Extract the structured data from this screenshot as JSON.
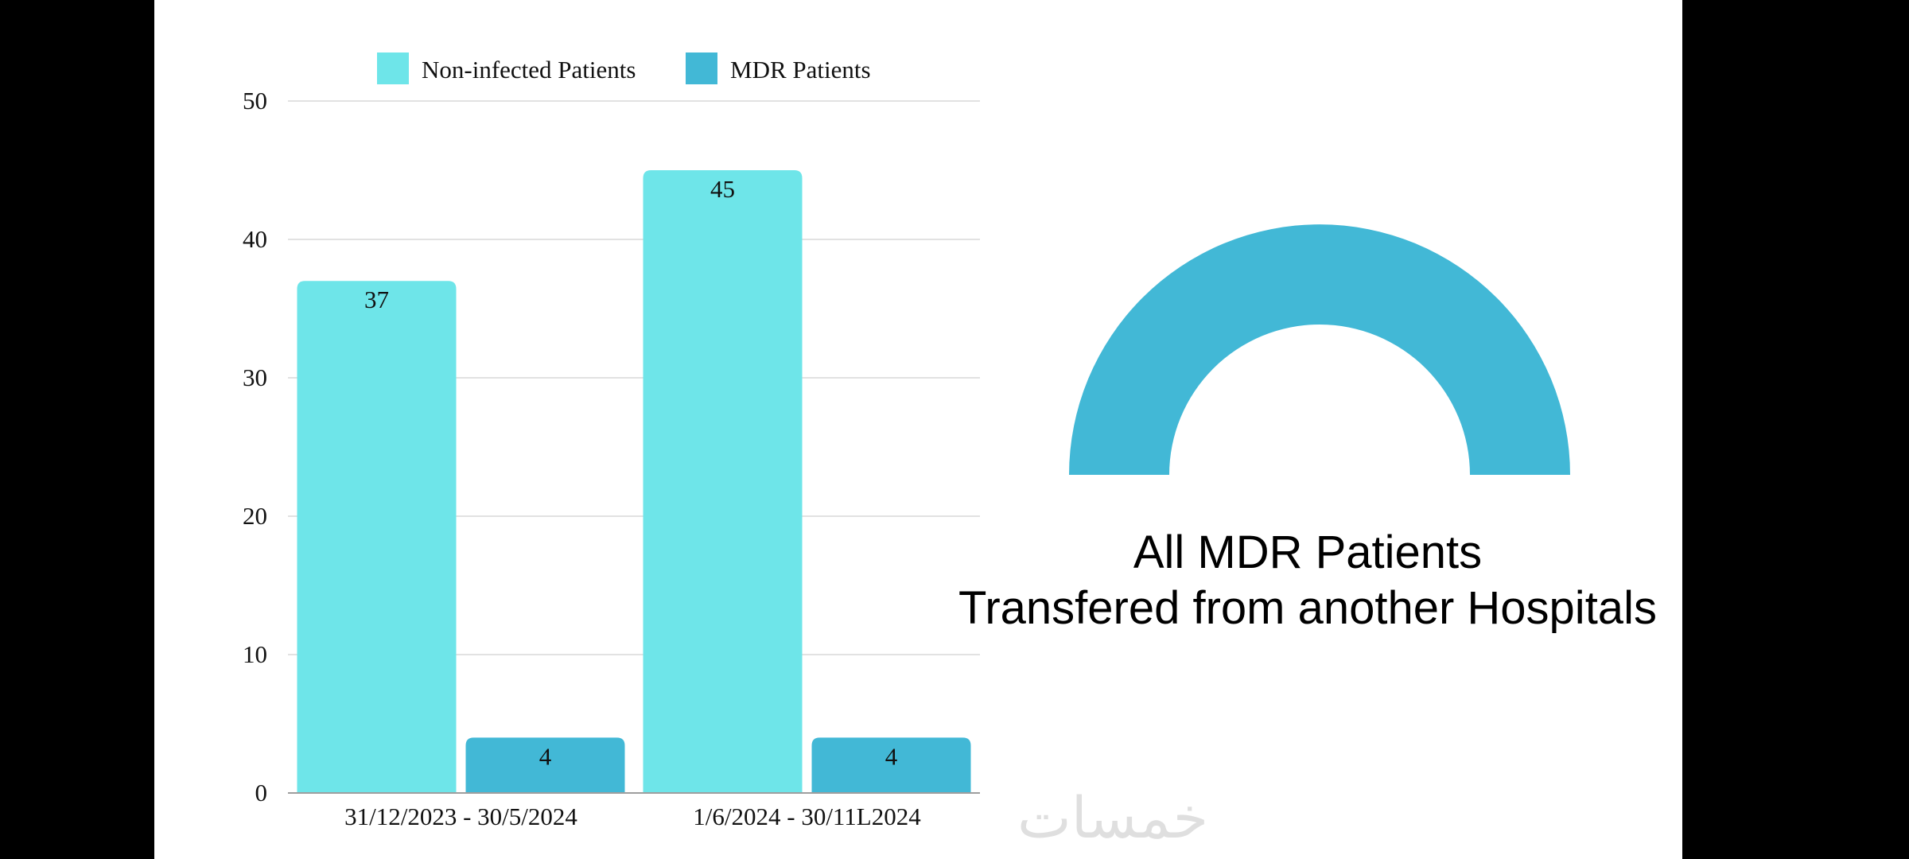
{
  "chart_data": [
    {
      "type": "bar",
      "categories": [
        "31/12/2023 - 30/5/2024",
        "1/6/2024 - 30/11L2024"
      ],
      "series": [
        {
          "name": "Non-infected Patients",
          "values": [
            37,
            45
          ],
          "color": "#6ee5e9"
        },
        {
          "name": "MDR Patients",
          "values": [
            4,
            4
          ],
          "color": "#42b8d6"
        }
      ],
      "ylim": [
        0,
        50
      ],
      "yticks": [
        0,
        10,
        20,
        30,
        40,
        50
      ],
      "grid": true,
      "legend": "top"
    },
    {
      "type": "pie",
      "style": "half-donut",
      "values": [
        100
      ],
      "color": "#42b8d6"
    }
  ],
  "caption": {
    "line1": "All MDR Patients",
    "line2": "Transfered from another Hospitals"
  },
  "watermark": "خمسات"
}
